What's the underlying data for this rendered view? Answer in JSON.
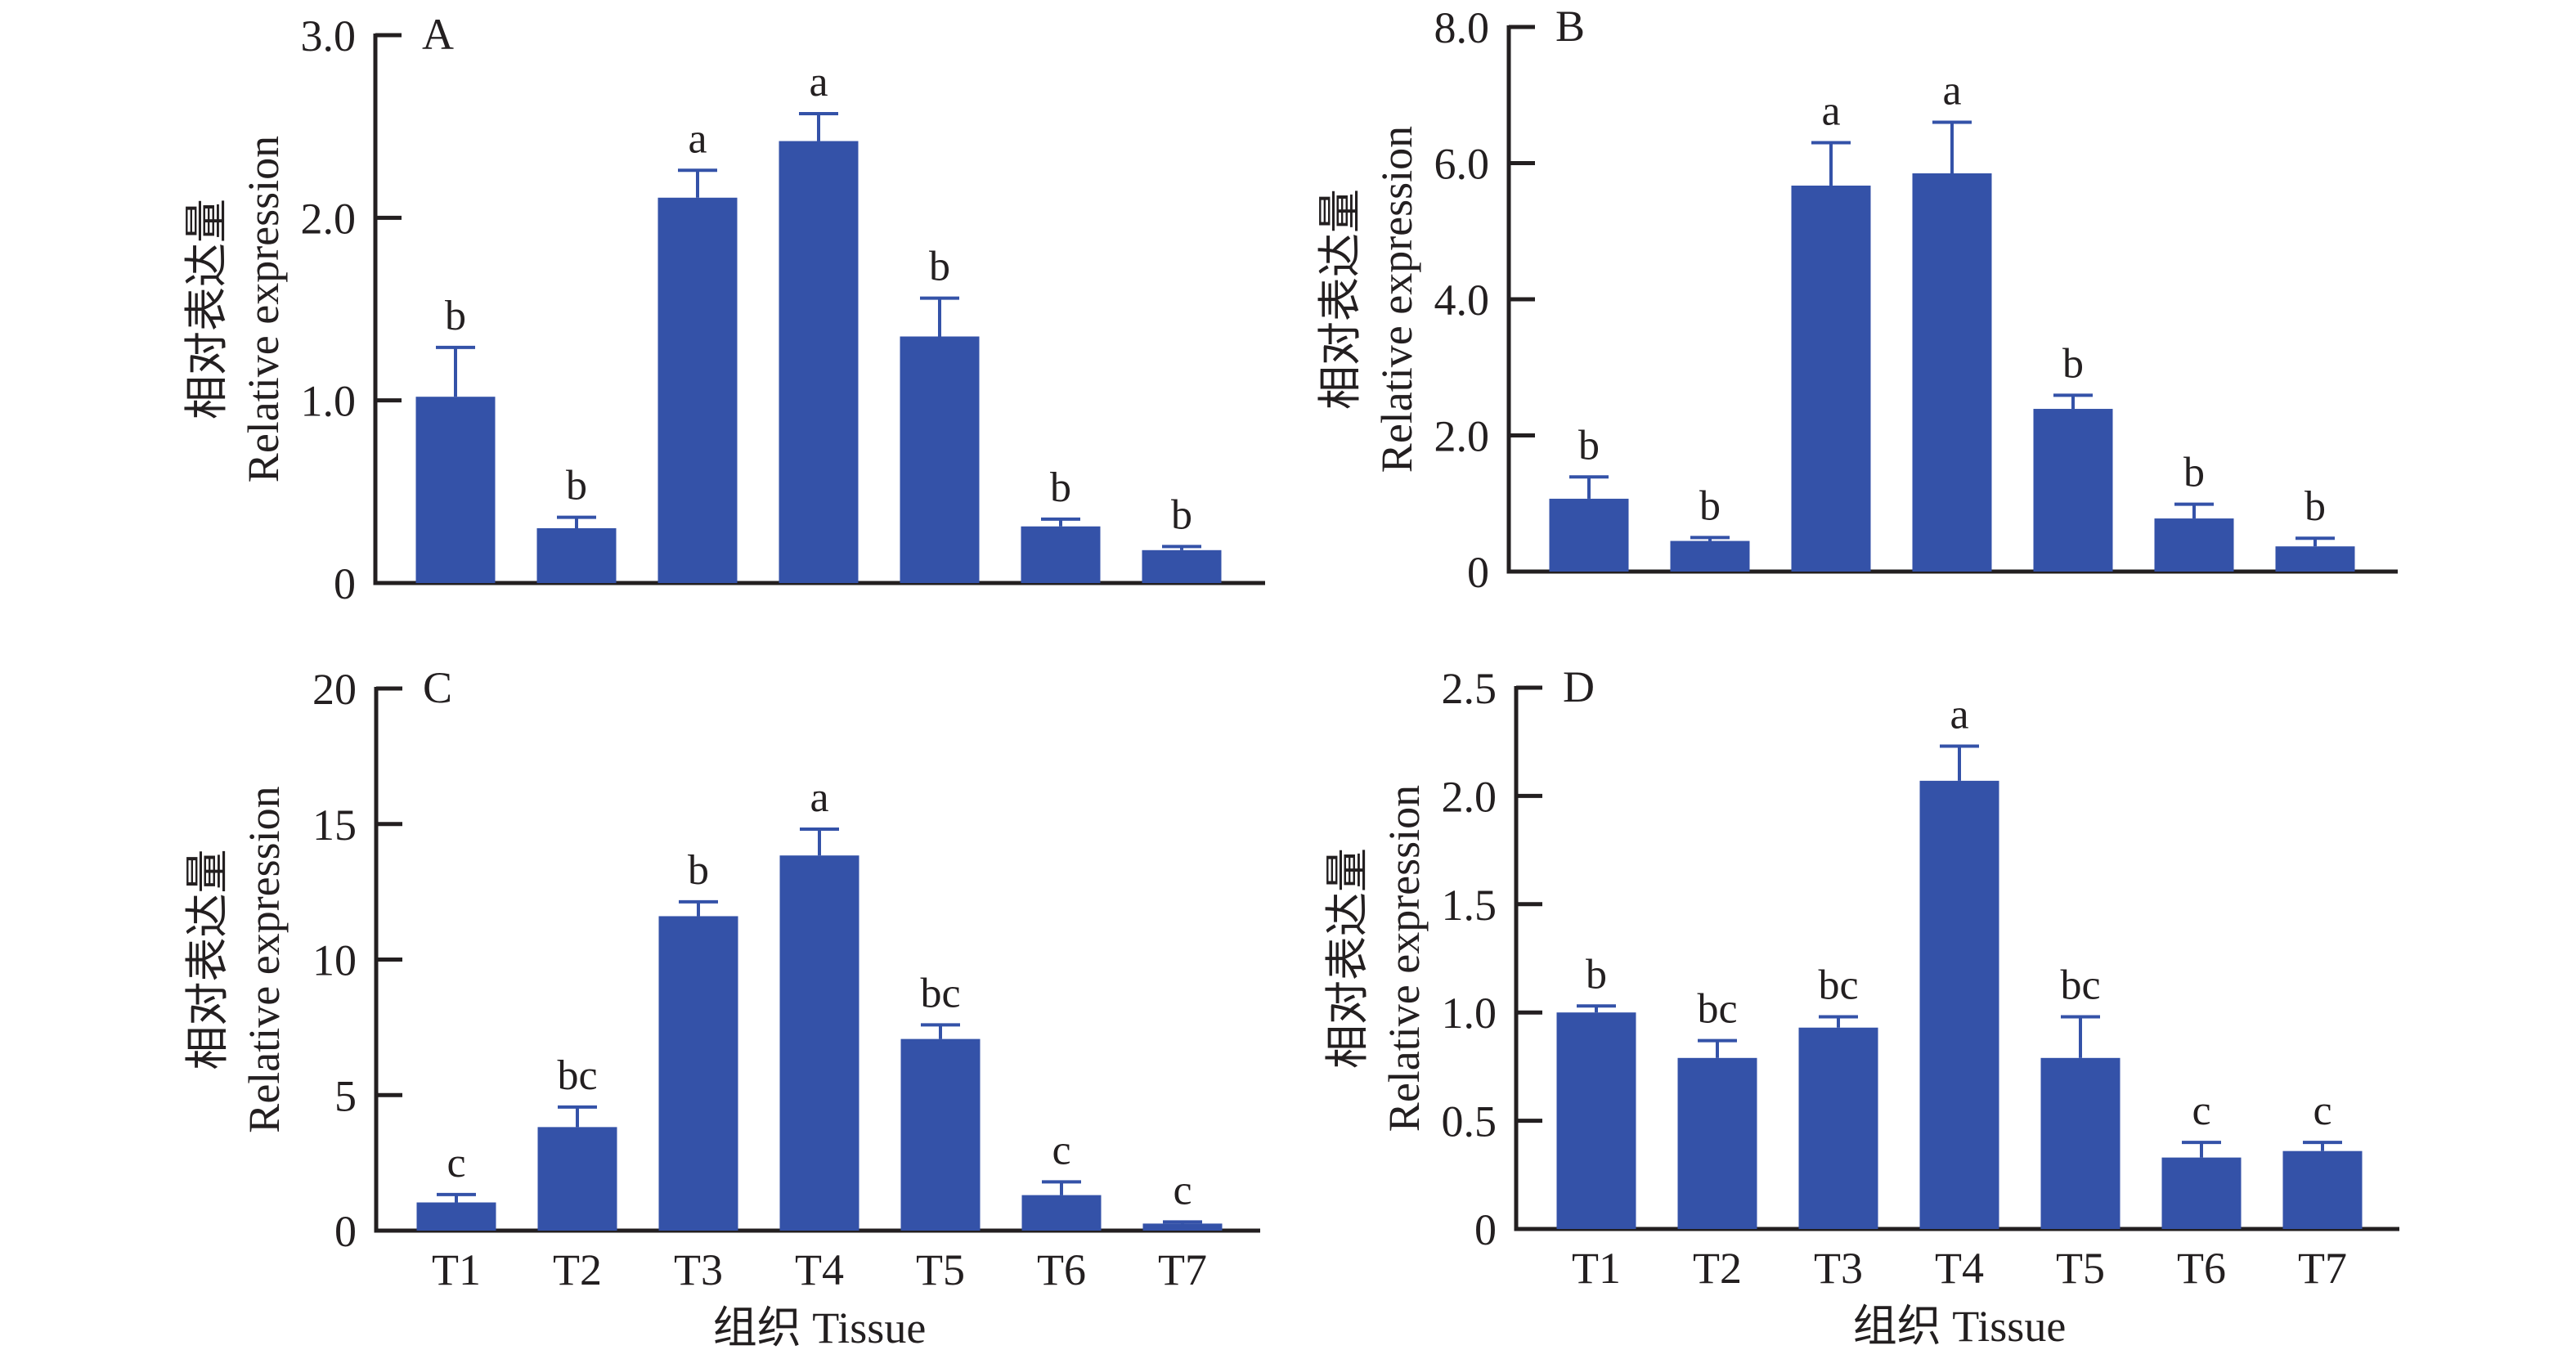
{
  "figure": {
    "bar_color": "#3452a8",
    "axis_color": "#231f20",
    "ylabel_cn": "相对表达量",
    "ylabel_en": "Relative expression",
    "xlabel": "组织 Tissue"
  },
  "chart_data": [
    {
      "type": "bar",
      "panel": "A",
      "title": "A",
      "categories": [
        "T1",
        "T2",
        "T3",
        "T4",
        "T5",
        "T6",
        "T7"
      ],
      "values": [
        1.02,
        0.3,
        2.11,
        2.42,
        1.35,
        0.31,
        0.18
      ],
      "error_upper": [
        1.29,
        0.36,
        2.26,
        2.57,
        1.56,
        0.35,
        0.2
      ],
      "significance": [
        "b",
        "b",
        "a",
        "a",
        "b",
        "b",
        "b"
      ],
      "ylim": [
        0,
        3.0
      ],
      "yticks": [
        0,
        1.0,
        2.0,
        3.0
      ],
      "ytick_labels": [
        "0",
        "1.0",
        "2.0",
        "3.0"
      ],
      "ylabel": "相对表达量 Relative expression",
      "xlabel": "",
      "show_xticks": false
    },
    {
      "type": "bar",
      "panel": "B",
      "title": "B",
      "categories": [
        "T1",
        "T2",
        "T3",
        "T4",
        "T5",
        "T6",
        "T7"
      ],
      "values": [
        1.07,
        0.45,
        5.67,
        5.85,
        2.39,
        0.78,
        0.37
      ],
      "error_upper": [
        1.39,
        0.5,
        6.3,
        6.6,
        2.59,
        0.99,
        0.49
      ],
      "significance": [
        "b",
        "b",
        "a",
        "a",
        "b",
        "b",
        "b"
      ],
      "ylim": [
        0,
        8.0
      ],
      "yticks": [
        0,
        2.0,
        4.0,
        6.0,
        8.0
      ],
      "ytick_labels": [
        "0",
        "2.0",
        "4.0",
        "6.0",
        "8.0"
      ],
      "ylabel": "相对表达量 Relative expression",
      "xlabel": "",
      "show_xticks": false
    },
    {
      "type": "bar",
      "panel": "C",
      "title": "C",
      "categories": [
        "T1",
        "T2",
        "T3",
        "T4",
        "T5",
        "T6",
        "T7"
      ],
      "values": [
        1.04,
        3.82,
        11.6,
        13.84,
        7.07,
        1.31,
        0.26
      ],
      "error_upper": [
        1.33,
        4.56,
        12.13,
        14.81,
        7.59,
        1.8,
        0.32
      ],
      "significance": [
        "c",
        "bc",
        "b",
        "a",
        "bc",
        "c",
        "c"
      ],
      "ylim": [
        0,
        20
      ],
      "yticks": [
        0,
        5,
        10,
        15,
        20
      ],
      "ytick_labels": [
        "0",
        "5",
        "10",
        "15",
        "20"
      ],
      "ylabel": "相对表达量 Relative expression",
      "xlabel": "组织 Tissue",
      "show_xticks": true
    },
    {
      "type": "bar",
      "panel": "D",
      "title": "D",
      "categories": [
        "T1",
        "T2",
        "T3",
        "T4",
        "T5",
        "T6",
        "T7"
      ],
      "values": [
        1.0,
        0.79,
        0.93,
        2.07,
        0.79,
        0.33,
        0.36
      ],
      "error_upper": [
        1.03,
        0.87,
        0.98,
        2.23,
        0.98,
        0.4,
        0.4
      ],
      "significance": [
        "b",
        "bc",
        "bc",
        "a",
        "bc",
        "c",
        "c"
      ],
      "ylim": [
        0,
        2.5
      ],
      "yticks": [
        0,
        0.5,
        1.0,
        1.5,
        2.0,
        2.5
      ],
      "ytick_labels": [
        "0",
        "0.5",
        "1.0",
        "1.5",
        "2.0",
        "2.5"
      ],
      "ylabel": "相对表达量 Relative expression",
      "xlabel": "组织 Tissue",
      "show_xticks": true
    }
  ]
}
